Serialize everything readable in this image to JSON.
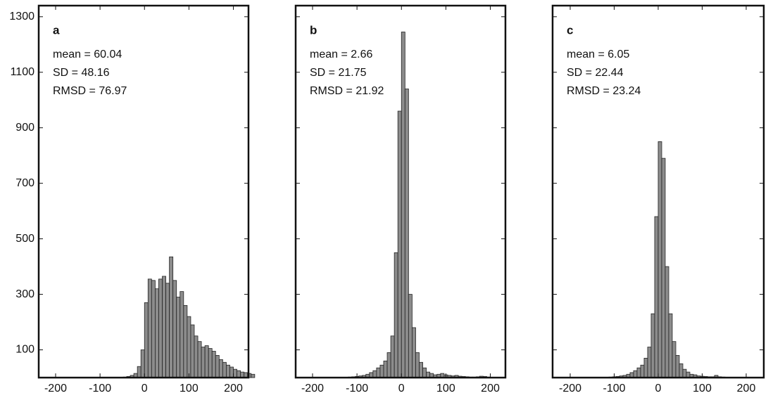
{
  "chart_data": [
    {
      "type": "histogram",
      "label": "a",
      "annotations": [
        "mean = 60.04",
        "SD = 48.16",
        "RMSD = 76.97"
      ],
      "bins": [
        -48,
        -40,
        -32,
        -24,
        -16,
        -8,
        0,
        8,
        16,
        24,
        32,
        40,
        48,
        56,
        64,
        72,
        80,
        88,
        96,
        104,
        112,
        120,
        128,
        136,
        144,
        152,
        160,
        168,
        176,
        184,
        192,
        200,
        208,
        216,
        224,
        232,
        240,
        248
      ],
      "counts": [
        2,
        4,
        8,
        15,
        40,
        100,
        270,
        355,
        350,
        320,
        355,
        365,
        340,
        435,
        350,
        290,
        310,
        260,
        220,
        190,
        150,
        130,
        110,
        115,
        105,
        95,
        80,
        65,
        55,
        45,
        38,
        30,
        25,
        20,
        18,
        15,
        12
      ],
      "color": "#8c8c8c",
      "xlim": [
        -238,
        234
      ],
      "ylim": [
        0,
        1340
      ],
      "xticks": [
        -200,
        -100,
        0,
        100,
        200
      ],
      "yticks": [
        100,
        300,
        500,
        700,
        900,
        1100,
        1300
      ],
      "show_ytick_labels": true
    },
    {
      "type": "histogram",
      "label": "b",
      "annotations": [
        "mean = 2.66",
        "SD = 21.75",
        "RMSD = 21.92"
      ],
      "bins": [
        -120,
        -112,
        -104,
        -96,
        -88,
        -80,
        -72,
        -64,
        -56,
        -48,
        -40,
        -32,
        -24,
        -16,
        -8,
        0,
        8,
        16,
        24,
        32,
        40,
        48,
        56,
        64,
        72,
        80,
        88,
        96,
        104,
        112,
        120,
        128,
        136,
        144,
        152,
        160,
        168,
        176,
        184,
        192,
        200
      ],
      "counts": [
        2,
        3,
        4,
        6,
        8,
        12,
        18,
        25,
        35,
        45,
        60,
        90,
        150,
        450,
        960,
        1245,
        1040,
        300,
        180,
        90,
        55,
        35,
        20,
        15,
        10,
        12,
        15,
        10,
        8,
        6,
        8,
        5,
        4,
        3,
        2,
        2,
        3,
        5,
        4,
        2
      ],
      "color": "#8c8c8c",
      "xlim": [
        -238,
        234
      ],
      "ylim": [
        0,
        1340
      ],
      "xticks": [
        -200,
        -100,
        0,
        100,
        200
      ],
      "yticks": [
        100,
        300,
        500,
        700,
        900,
        1100,
        1300
      ],
      "show_ytick_labels": false
    },
    {
      "type": "histogram",
      "label": "c",
      "annotations": [
        "mean = 6.05",
        "SD = 22.44",
        "RMSD = 23.24"
      ],
      "bins": [
        -120,
        -112,
        -104,
        -96,
        -88,
        -80,
        -72,
        -64,
        -56,
        -48,
        -40,
        -32,
        -24,
        -16,
        -8,
        0,
        8,
        16,
        24,
        32,
        40,
        48,
        56,
        64,
        72,
        80,
        88,
        96,
        104,
        112,
        120,
        128,
        136,
        144,
        152,
        160
      ],
      "counts": [
        1,
        2,
        3,
        4,
        6,
        8,
        12,
        18,
        25,
        35,
        45,
        70,
        110,
        230,
        580,
        850,
        790,
        400,
        230,
        130,
        80,
        50,
        30,
        20,
        12,
        10,
        6,
        5,
        4,
        3,
        3,
        8,
        3,
        2,
        1
      ],
      "color": "#8c8c8c",
      "xlim": [
        -240,
        240
      ],
      "ylim": [
        0,
        1340
      ],
      "xticks": [
        -200,
        -100,
        0,
        100,
        200
      ],
      "yticks": [
        100,
        300,
        500,
        700,
        900,
        1100,
        1300
      ],
      "show_ytick_labels": false
    }
  ]
}
